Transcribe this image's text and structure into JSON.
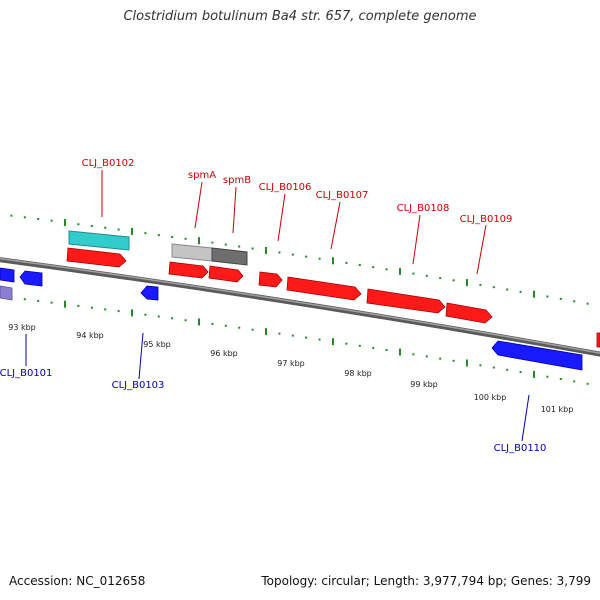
{
  "title": "Clostridium botulinum Ba4 str. 657, complete genome",
  "footer": {
    "accession": "Accession: NC_012658",
    "summary": "Topology: circular; Length: 3,977,794 bp; Genes: 3,799"
  },
  "colors": {
    "forward_gene": "#ff0000",
    "reverse_gene": "#0000ff",
    "forward_label": "#cc0000",
    "reverse_label": "#0000aa",
    "tick": "#228b22",
    "backbone": "#808080",
    "cyan_feature": "#33cccc",
    "grey_feature": "#b0b0b0",
    "dark_feature": "#707070",
    "violet_feature": "#8a7fd0"
  },
  "scale_labels": [
    "93 kbp",
    "94 kbp",
    "95 kbp",
    "96 kbp",
    "97 kbp",
    "98 kbp",
    "99 kbp",
    "100 kbp",
    "101 kbp"
  ],
  "forward_labels": [
    "CLJ_B0102",
    "spmA",
    "spmB",
    "CLJ_B0106",
    "CLJ_B0107",
    "CLJ_B0108",
    "CLJ_B0109"
  ],
  "reverse_labels": [
    "CLJ_B0101",
    "CLJ_B0103",
    "CLJ_B0110"
  ]
}
